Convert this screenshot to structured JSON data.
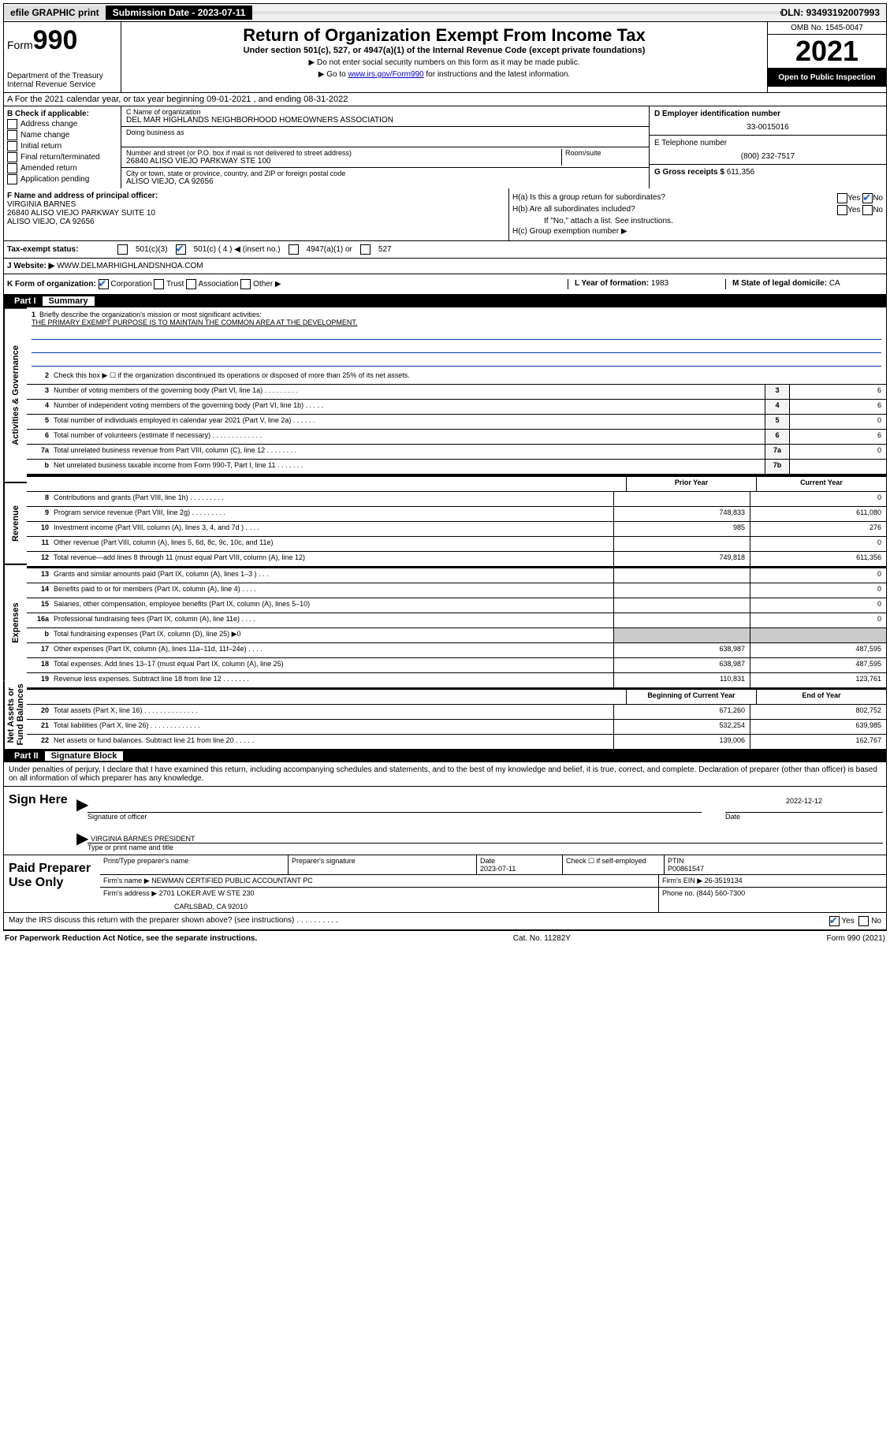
{
  "topbar": {
    "efile": "efile GRAPHIC print",
    "subdate_lbl": "Submission Date - ",
    "subdate": "2023-07-11",
    "dln_lbl": "DLN: ",
    "dln": "93493192007993"
  },
  "header": {
    "form_prefix": "Form",
    "form_num": "990",
    "dept": "Department of the Treasury",
    "irs": "Internal Revenue Service",
    "title": "Return of Organization Exempt From Income Tax",
    "sub": "Under section 501(c), 527, or 4947(a)(1) of the Internal Revenue Code (except private foundations)",
    "note1": "▶ Do not enter social security numbers on this form as it may be made public.",
    "note2_pre": "▶ Go to ",
    "note2_link": "www.irs.gov/Form990",
    "note2_post": " for instructions and the latest information.",
    "omb": "OMB No. 1545-0047",
    "year": "2021",
    "open": "Open to Public Inspection"
  },
  "row_a": "A For the 2021 calendar year, or tax year beginning 09-01-2021   , and ending 08-31-2022",
  "box_b": {
    "hdr": "B Check if applicable:",
    "items": [
      "Address change",
      "Name change",
      "Initial return",
      "Final return/terminated",
      "Amended return",
      "Application pending"
    ]
  },
  "box_c": {
    "name_lbl": "C Name of organization",
    "name": "DEL MAR HIGHLANDS NEIGHBORHOOD HOMEOWNERS ASSOCIATION",
    "dba_lbl": "Doing business as",
    "addr_lbl": "Number and street (or P.O. box if mail is not delivered to street address)",
    "room_lbl": "Room/suite",
    "addr": "26840 ALISO VIEJO PARKWAY STE 100",
    "city_lbl": "City or town, state or province, country, and ZIP or foreign postal code",
    "city": "ALISO VIEJO, CA  92656"
  },
  "box_de": {
    "d_lbl": "D Employer identification number",
    "d_val": "33-0015016",
    "e_lbl": "E Telephone number",
    "e_val": "(800) 232-7517",
    "g_lbl": "G Gross receipts $ ",
    "g_val": "611,356"
  },
  "row_f": {
    "lbl": "F Name and address of principal officer:",
    "name": "VIRGINIA BARNES",
    "addr1": "26840 ALISO VIEJO PARKWAY SUITE 10",
    "addr2": "ALISO VIEJO, CA  92656"
  },
  "row_h": {
    "ha": "H(a)  Is this a group return for subordinates?",
    "hb": "H(b)  Are all subordinates included?",
    "hb_note": "If \"No,\" attach a list. See instructions.",
    "hc": "H(c)  Group exemption number ▶",
    "yes": "Yes",
    "no": "No"
  },
  "row_i": {
    "lbl": "Tax-exempt status:",
    "o1": "501(c)(3)",
    "o2": "501(c) ( 4 ) ◀ (insert no.)",
    "o3": "4947(a)(1) or",
    "o4": "527"
  },
  "row_j": {
    "lbl": "J   Website: ▶ ",
    "val": "WWW.DELMARHIGHLANDSNHOA.COM"
  },
  "row_k": {
    "lbl": "K Form of organization:",
    "opts": [
      "Corporation",
      "Trust",
      "Association",
      "Other ▶"
    ],
    "l_lbl": "L Year of formation: ",
    "l_val": "1983",
    "m_lbl": "M State of legal domicile: ",
    "m_val": "CA"
  },
  "parts": {
    "p1": "Part I",
    "p1t": "Summary",
    "p2": "Part II",
    "p2t": "Signature Block"
  },
  "summary": {
    "tabs": [
      "Activities & Governance",
      "Revenue",
      "Expenses",
      "Net Assets or Fund Balances"
    ],
    "l1": "Briefly describe the organization's mission or most significant activities:",
    "l1v": "THE PRIMARY EXEMPT PURPOSE IS TO MAINTAIN THE COMMON AREA AT THE DEVELOPMENT.",
    "l2": "Check this box ▶ ☐  if the organization discontinued its operations or disposed of more than 25% of its net assets.",
    "rows_gov": [
      {
        "n": "3",
        "d": "Number of voting members of the governing body (Part VI, line 1a)   .    .    .    .    .    .    .    .    .",
        "b": "3",
        "v": "6"
      },
      {
        "n": "4",
        "d": "Number of independent voting members of the governing body (Part VI, line 1b)   .    .    .    .    .",
        "b": "4",
        "v": "6"
      },
      {
        "n": "5",
        "d": "Total number of individuals employed in calendar year 2021 (Part V, line 2a)   .    .    .    .    .    .",
        "b": "5",
        "v": "0"
      },
      {
        "n": "6",
        "d": "Total number of volunteers (estimate if necessary)   .    .    .    .    .    .    .    .    .    .    .    .    .",
        "b": "6",
        "v": "6"
      },
      {
        "n": "7a",
        "d": "Total unrelated business revenue from Part VIII, column (C), line 12   .    .    .    .    .    .    .    .",
        "b": "7a",
        "v": "0"
      },
      {
        "n": "b",
        "d": "Net unrelated business taxable income from Form 990-T, Part I, line 11   .    .    .    .    .    .    .",
        "b": "7b",
        "v": ""
      }
    ],
    "hdr_prior": "Prior Year",
    "hdr_curr": "Current Year",
    "rows_rev": [
      {
        "n": "8",
        "d": "Contributions and grants (Part VIII, line 1h)    .    .    .    .    .    .    .    .    .",
        "p": "",
        "c": "0"
      },
      {
        "n": "9",
        "d": "Program service revenue (Part VIII, line 2g)    .    .    .    .    .    .    .    .    .",
        "p": "748,833",
        "c": "611,080"
      },
      {
        "n": "10",
        "d": "Investment income (Part VIII, column (A), lines 3, 4, and 7d )    .    .    .    .",
        "p": "985",
        "c": "276"
      },
      {
        "n": "11",
        "d": "Other revenue (Part VIII, column (A), lines 5, 6d, 8c, 9c, 10c, and 11e)",
        "p": "",
        "c": "0"
      },
      {
        "n": "12",
        "d": "Total revenue—add lines 8 through 11 (must equal Part VIII, column (A), line 12)",
        "p": "749,818",
        "c": "611,356"
      }
    ],
    "rows_exp": [
      {
        "n": "13",
        "d": "Grants and similar amounts paid (Part IX, column (A), lines 1–3 )    .    .    .",
        "p": "",
        "c": "0"
      },
      {
        "n": "14",
        "d": "Benefits paid to or for members (Part IX, column (A), line 4)    .    .    .    .",
        "p": "",
        "c": "0"
      },
      {
        "n": "15",
        "d": "Salaries, other compensation, employee benefits (Part IX, column (A), lines 5–10)",
        "p": "",
        "c": "0"
      },
      {
        "n": "16a",
        "d": "Professional fundraising fees (Part IX, column (A), line 11e)    .    .    .    .",
        "p": "",
        "c": "0"
      },
      {
        "n": "b",
        "d": "Total fundraising expenses (Part IX, column (D), line 25) ▶0",
        "p": "shade",
        "c": "shade"
      },
      {
        "n": "17",
        "d": "Other expenses (Part IX, column (A), lines 11a–11d, 11f–24e)    .    .    .    .",
        "p": "638,987",
        "c": "487,595"
      },
      {
        "n": "18",
        "d": "Total expenses. Add lines 13–17 (must equal Part IX, column (A), line 25)",
        "p": "638,987",
        "c": "487,595"
      },
      {
        "n": "19",
        "d": "Revenue less expenses. Subtract line 18 from line 12    .    .    .    .    .    .    .",
        "p": "110,831",
        "c": "123,761"
      }
    ],
    "hdr_beg": "Beginning of Current Year",
    "hdr_end": "End of Year",
    "rows_net": [
      {
        "n": "20",
        "d": "Total assets (Part X, line 16)    .    .    .    .    .    .    .    .    .    .    .    .    .    .",
        "p": "671,260",
        "c": "802,752"
      },
      {
        "n": "21",
        "d": "Total liabilities (Part X, line 26)    .    .    .    .    .    .    .    .    .    .    .    .    .",
        "p": "532,254",
        "c": "639,985"
      },
      {
        "n": "22",
        "d": "Net assets or fund balances. Subtract line 21 from line 20    .    .    .    .    .",
        "p": "139,006",
        "c": "162,767"
      }
    ]
  },
  "sig": {
    "perjury": "Under penalties of perjury, I declare that I have examined this return, including accompanying schedules and statements, and to the best of my knowledge and belief, it is true, correct, and complete. Declaration of preparer (other than officer) is based on all information of which preparer has any knowledge.",
    "sign_here": "Sign Here",
    "sig_officer": "Signature of officer",
    "date_lbl": "Date",
    "date_val": "2022-12-12",
    "name": "VIRGINIA BARNES  PRESIDENT",
    "name_lbl": "Type or print name and title"
  },
  "prep": {
    "lbl": "Paid Preparer Use Only",
    "h1": "Print/Type preparer's name",
    "h2": "Preparer's signature",
    "h3": "Date",
    "h3v": "2023-07-11",
    "h4": "Check ☐ if self-employed",
    "h5": "PTIN",
    "h5v": "P00861547",
    "firm_lbl": "Firm's name    ▶",
    "firm": "NEWMAN CERTIFIED PUBLIC ACCOUNTANT PC",
    "ein_lbl": "Firm's EIN ▶ ",
    "ein": "26-3519134",
    "addr_lbl": "Firm's address ▶",
    "addr1": "2701 LOKER AVE W STE 230",
    "addr2": "CARLSBAD, CA  92010",
    "phone_lbl": "Phone no. ",
    "phone": "(844) 560-7300"
  },
  "bottom": {
    "q": "May the IRS discuss this return with the preparer shown above? (see instructions)    .    .    .    .    .    .    .    .    .    .",
    "yes": "Yes",
    "no": "No"
  },
  "footer": {
    "l": "For Paperwork Reduction Act Notice, see the separate instructions.",
    "m": "Cat. No. 11282Y",
    "r": "Form 990 (2021)"
  }
}
